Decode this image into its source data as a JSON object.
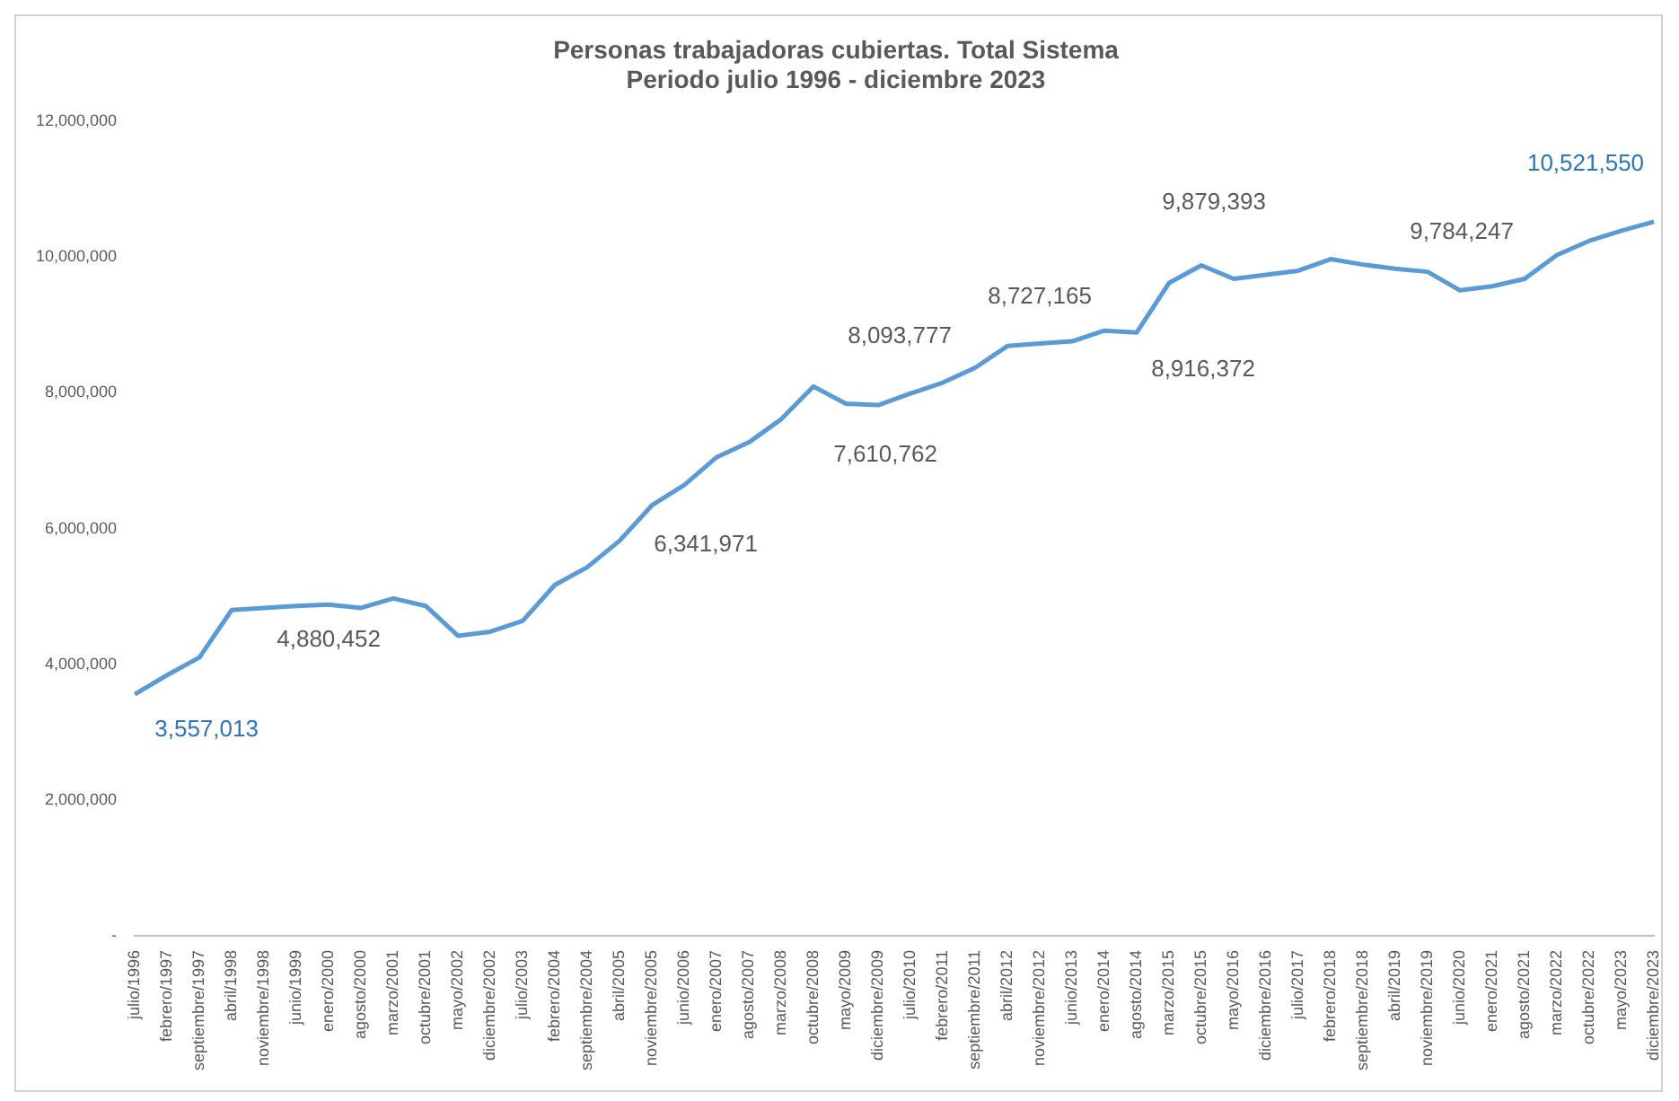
{
  "chart_data": {
    "type": "line",
    "title": "Personas trabajadoras cubiertas. Total Sistema",
    "subtitle": "Periodo julio 1996 - diciembre 2023",
    "categories": [
      "julio/1996",
      "febrero/1997",
      "septiembre/1997",
      "abril/1998",
      "noviembre/1998",
      "junio/1999",
      "enero/2000",
      "agosto/2000",
      "marzo/2001",
      "octubre/2001",
      "mayo/2002",
      "diciembre/2002",
      "julio/2003",
      "febrero/2004",
      "septiembre/2004",
      "abril/2005",
      "noviembre/2005",
      "junio/2006",
      "enero/2007",
      "agosto/2007",
      "marzo/2008",
      "octubre/2008",
      "mayo/2009",
      "diciembre/2009",
      "julio/2010",
      "febrero/2011",
      "septiembre/2011",
      "abril/2012",
      "noviembre/2012",
      "junio/2013",
      "enero/2014",
      "agosto/2014",
      "marzo/2015",
      "octubre/2015",
      "mayo/2016",
      "diciembre/2016",
      "julio/2017",
      "febrero/2018",
      "septiembre/2018",
      "abril/2019",
      "noviembre/2019",
      "junio/2020",
      "enero/2021",
      "agosto/2021",
      "marzo/2022",
      "octubre/2022",
      "mayo/2023",
      "diciembre/2023"
    ],
    "series": [
      {
        "color": "#5b9bd5",
        "values": [
          3557013,
          3840000,
          4100000,
          4800000,
          4830000,
          4860000,
          4880452,
          4830000,
          4970000,
          4860000,
          4420000,
          4480000,
          4640000,
          5170000,
          5430000,
          5820000,
          6341971,
          6640000,
          7050000,
          7270000,
          7610762,
          8093777,
          7840000,
          7820000,
          7990000,
          8150000,
          8370000,
          8690000,
          8727165,
          8760000,
          8916372,
          8890000,
          9620000,
          9879393,
          9680000,
          9740000,
          9800000,
          9970000,
          9890000,
          9830000,
          9784247,
          9510000,
          9570000,
          9680000,
          10030000,
          10240000,
          10390000,
          10521550
        ]
      }
    ],
    "ylim": [
      0,
      12000000
    ],
    "yticks": [
      {
        "value": 0,
        "label": "-"
      },
      {
        "value": 2000000,
        "label": "2,000,000"
      },
      {
        "value": 4000000,
        "label": "4,000,000"
      },
      {
        "value": 6000000,
        "label": "6,000,000"
      },
      {
        "value": 8000000,
        "label": "8,000,000"
      },
      {
        "value": 10000000,
        "label": "10,000,000"
      },
      {
        "value": 12000000,
        "label": "12,000,000"
      }
    ],
    "grid": false,
    "legend": false,
    "annotations": [
      {
        "text": "3,557,013",
        "x": "julio/1996",
        "y": 3557013
      },
      {
        "text": "4,880,452",
        "x": "enero/2000",
        "y": 4880452
      },
      {
        "text": "6,341,971",
        "x": "noviembre/2005",
        "y": 6341971
      },
      {
        "text": "7,610,762",
        "x": "marzo/2008",
        "y": 7610762
      },
      {
        "text": "8,093,777",
        "x": "octubre/2008",
        "y": 8093777
      },
      {
        "text": "8,727,165",
        "x": "noviembre/2012",
        "y": 8727165
      },
      {
        "text": "8,916,372",
        "x": "enero/2014",
        "y": 8916372
      },
      {
        "text": "9,879,393",
        "x": "octubre/2015",
        "y": 9879393
      },
      {
        "text": "9,784,247",
        "x": "noviembre/2019",
        "y": 9784247
      },
      {
        "text": "10,521,550",
        "x": "diciembre/2023",
        "y": 10521550
      }
    ]
  }
}
